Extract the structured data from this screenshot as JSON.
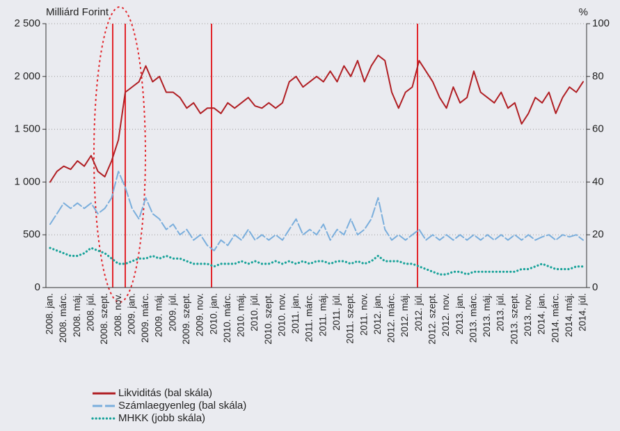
{
  "chart_data": {
    "type": "line",
    "y_label": "Milliárd Forint",
    "y2_label": "%",
    "categories": [
      "2008. jan.",
      null,
      "2008. márc.",
      null,
      "2008. máj.",
      null,
      "2008. júl.",
      null,
      "2008. szept.",
      null,
      "2008. nov.",
      null,
      "2009. jan.",
      null,
      "2009. márc.",
      null,
      "2009. máj.",
      null,
      "2009. júl.",
      null,
      "2009. szept.",
      null,
      "2009. nov.",
      null,
      "2010. jan.",
      null,
      "2010. márc.",
      null,
      "2010. máj.",
      null,
      "2010. júl.",
      null,
      "2010. szept.",
      null,
      "2010. nov.",
      null,
      "2011. jan.",
      null,
      "2011. márc.",
      null,
      "2011. máj.",
      null,
      "2011. júl.",
      null,
      "2011. szept.",
      null,
      "2011. nov.",
      null,
      "2012. jan.",
      null,
      "2012. márc.",
      null,
      "2012. máj.",
      null,
      "2012. júl.",
      null,
      "2012. szept.",
      null,
      "2012. nov.",
      null,
      "2013. jan.",
      null,
      "2013. márc.",
      null,
      "2013. máj.",
      null,
      "2013. júl.",
      null,
      "2013. szept.",
      null,
      "2013. nov.",
      null,
      "2014. jan.",
      null,
      "2014. márc.",
      null,
      "2014. máj.",
      null,
      "2014. júl."
    ],
    "series": [
      {
        "name": "Likviditás (bal skála)",
        "color": "#b01e23",
        "style": "solid",
        "values": [
          1000,
          1100,
          1150,
          1120,
          1200,
          1150,
          1250,
          1100,
          1050,
          1200,
          1400,
          1850,
          1900,
          1950,
          2100,
          1950,
          2000,
          1850,
          1850,
          1800,
          1700,
          1750,
          1650,
          1700,
          1700,
          1650,
          1750,
          1700,
          1750,
          1800,
          1720,
          1700,
          1750,
          1700,
          1750,
          1950,
          2000,
          1900,
          1950,
          2000,
          1950,
          2050,
          1950,
          2100,
          2000,
          2150,
          1950,
          2100,
          2200,
          2150,
          1850,
          1700,
          1850,
          1900,
          2150,
          2050,
          1950,
          1800,
          1700,
          1900,
          1750,
          1800,
          2050,
          1850,
          1800,
          1750,
          1850,
          1700,
          1750,
          1550,
          1650,
          1800,
          1750,
          1850,
          1650,
          1800,
          1900,
          1850,
          1950
        ]
      },
      {
        "name": "Számlaegyenleg (bal skála)",
        "color": "#7aaedc",
        "style": "dashed",
        "values": [
          600,
          700,
          800,
          750,
          800,
          750,
          800,
          700,
          750,
          850,
          1100,
          950,
          750,
          650,
          850,
          700,
          650,
          550,
          600,
          500,
          550,
          450,
          500,
          400,
          350,
          450,
          400,
          500,
          450,
          550,
          450,
          500,
          450,
          500,
          450,
          550,
          650,
          500,
          550,
          500,
          600,
          450,
          550,
          500,
          650,
          500,
          550,
          650,
          850,
          550,
          450,
          500,
          450,
          500,
          550,
          450,
          500,
          450,
          500,
          450,
          500,
          450,
          500,
          450,
          500,
          450,
          500,
          450,
          500,
          450,
          500,
          450,
          480,
          500,
          450,
          500,
          480,
          500,
          450
        ]
      },
      {
        "name": "MHKK (jobb skála)",
        "color": "#1aa39a",
        "style": "dotted",
        "axis": "y2",
        "values": [
          15,
          14,
          13,
          12,
          12,
          13,
          15,
          14,
          13,
          11,
          9,
          9,
          10,
          11,
          11,
          12,
          11,
          12,
          11,
          11,
          10,
          9,
          9,
          9,
          8,
          9,
          9,
          9,
          10,
          9,
          10,
          9,
          9,
          10,
          9,
          10,
          9,
          10,
          9,
          10,
          10,
          9,
          10,
          10,
          9,
          10,
          9,
          10,
          12,
          10,
          10,
          10,
          9,
          9,
          8,
          7,
          6,
          5,
          5,
          6,
          6,
          5,
          6,
          6,
          6,
          6,
          6,
          6,
          6,
          7,
          7,
          8,
          9,
          8,
          7,
          7,
          7,
          8,
          8
        ]
      }
    ],
    "ylim": [
      0,
      2500
    ],
    "yticks": [
      0,
      500,
      {
        "value": 1000,
        "label": "1 000"
      },
      {
        "value": 1500,
        "label": "1 500"
      },
      {
        "value": 2000,
        "label": "2 000"
      },
      {
        "value": 2500,
        "label": "2 500"
      }
    ],
    "y2lim": [
      0,
      100
    ],
    "y2ticks": [
      0,
      20,
      40,
      60,
      80,
      100
    ],
    "grid": true
  }
}
